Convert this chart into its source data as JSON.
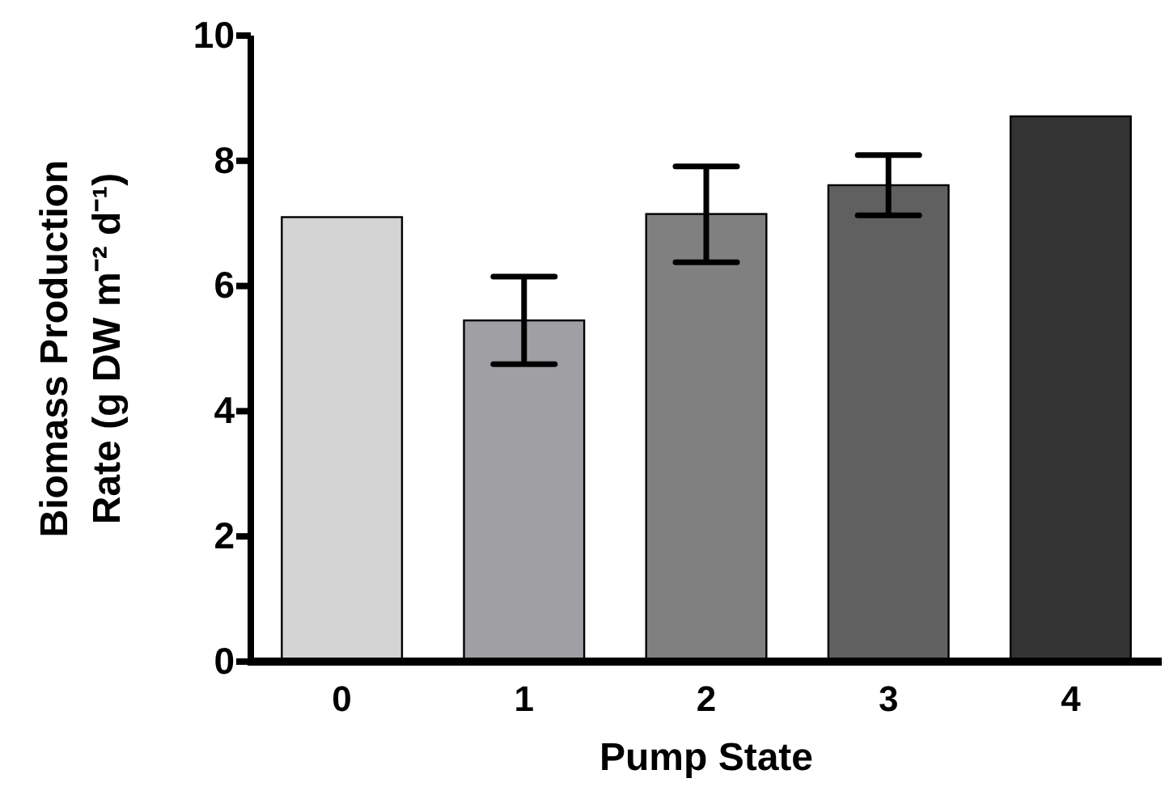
{
  "chart_data": {
    "type": "bar",
    "xlabel": "Pump State",
    "ylabel": "Biomass Production\nRate (g DW m⁻² d⁻¹)",
    "categories": [
      "0",
      "1",
      "2",
      "3",
      "4"
    ],
    "values": [
      7.1,
      5.45,
      7.15,
      7.61,
      8.71
    ],
    "colors": [
      "#d4d4d4",
      "#a0a0a4",
      "#808080",
      "#606060",
      "#333333"
    ],
    "errors": [
      null,
      [
        4.75,
        6.15
      ],
      [
        6.38,
        7.91
      ],
      [
        7.13,
        8.09
      ],
      null
    ],
    "ylim": [
      0,
      10
    ],
    "yticks": [
      0,
      2,
      4,
      6,
      8,
      10
    ],
    "grid": false
  }
}
